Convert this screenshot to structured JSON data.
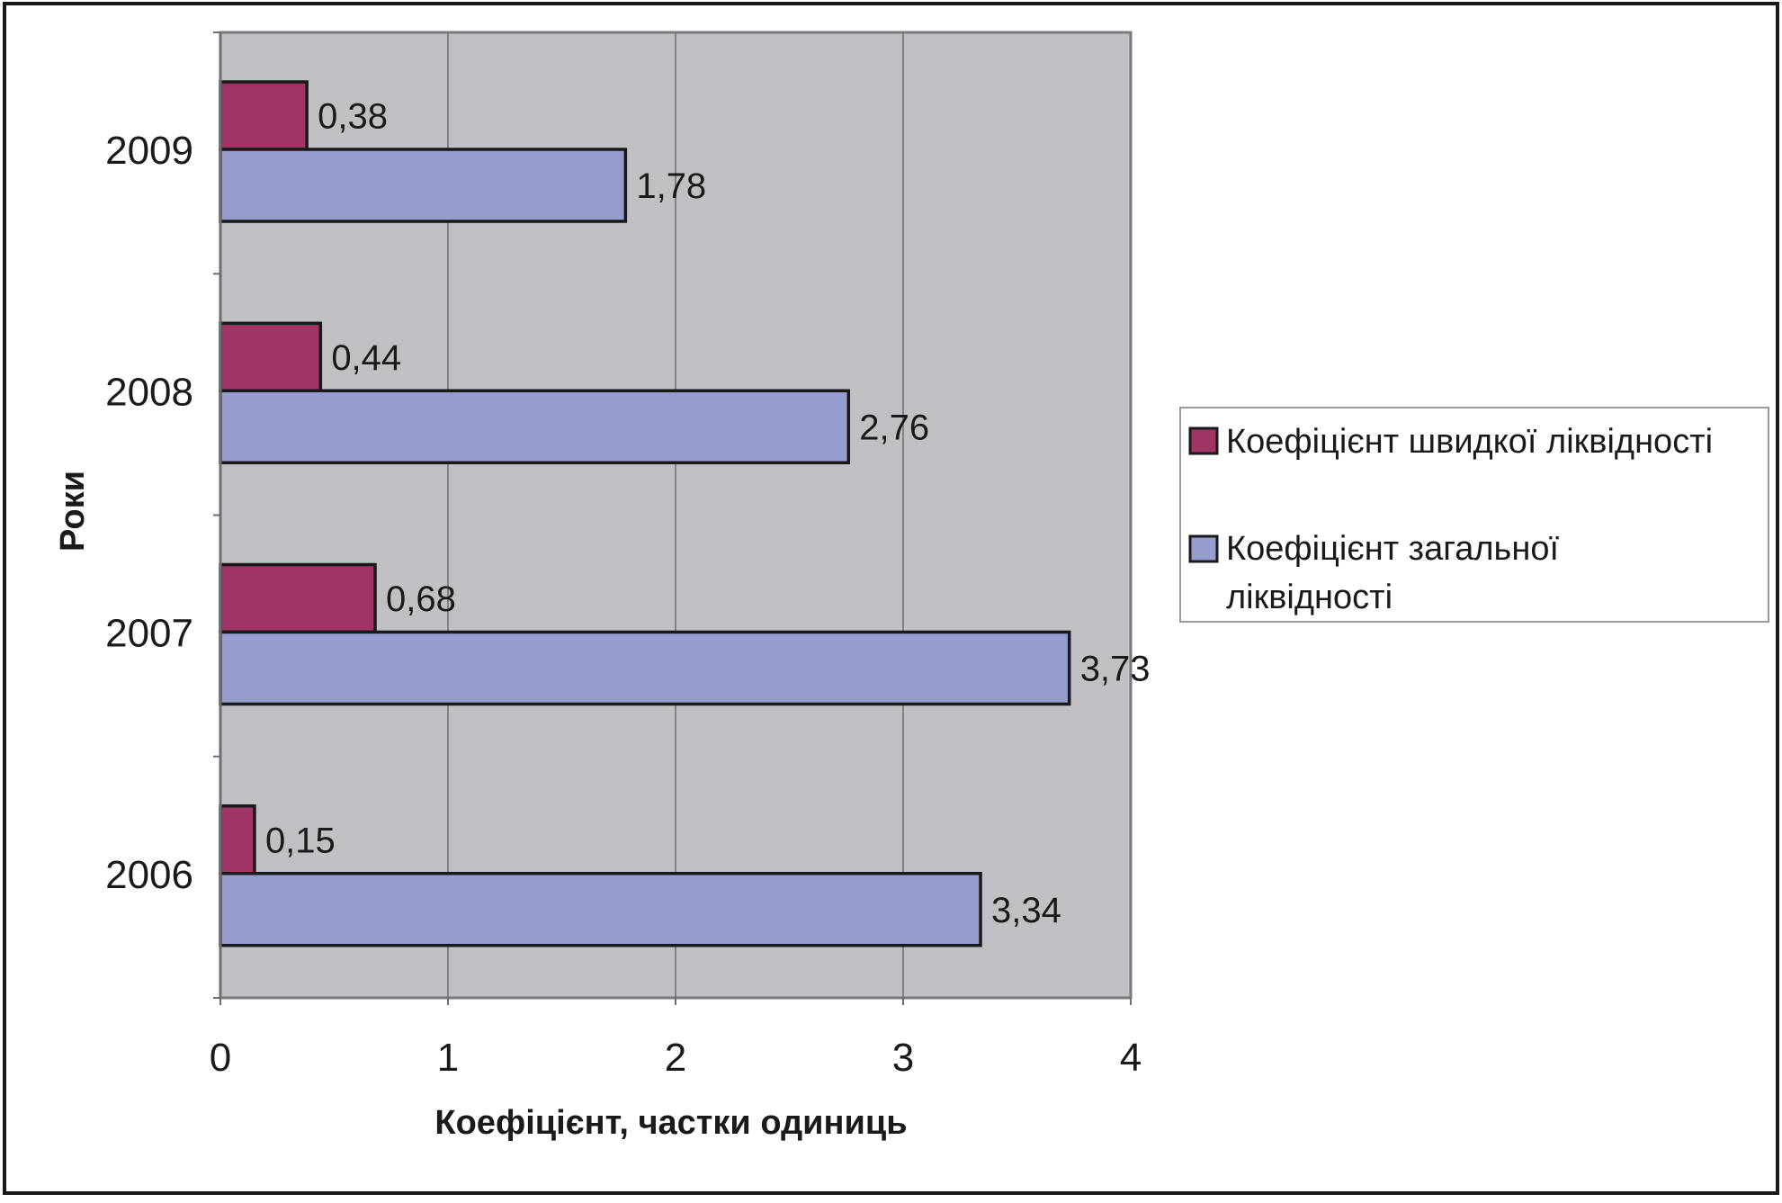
{
  "chart_data": {
    "type": "bar",
    "orientation": "horizontal",
    "title": "",
    "xlabel": "Коефіцієнт, частки одиниць",
    "ylabel": "Роки",
    "categories": [
      "2006",
      "2007",
      "2008",
      "2009"
    ],
    "series": [
      {
        "name": "Коефіцієнт швидкої ліквідності",
        "color": "#9e3564",
        "values": [
          0.15,
          0.68,
          0.44,
          0.38
        ],
        "labels": [
          "0,15",
          "0,68",
          "0,44",
          "0,38"
        ]
      },
      {
        "name": "Коефіцієнт загальної ліквідності",
        "color": "#969cce",
        "values": [
          3.34,
          3.73,
          2.76,
          1.78
        ],
        "labels": [
          "3,34",
          "3,73",
          "2,76",
          "1,78"
        ]
      }
    ],
    "xlim": [
      0,
      4
    ],
    "xticks": [
      "0",
      "1",
      "2",
      "3",
      "4"
    ],
    "grid": true,
    "plot_background": "#c0c0c4",
    "legend_position": "right"
  }
}
